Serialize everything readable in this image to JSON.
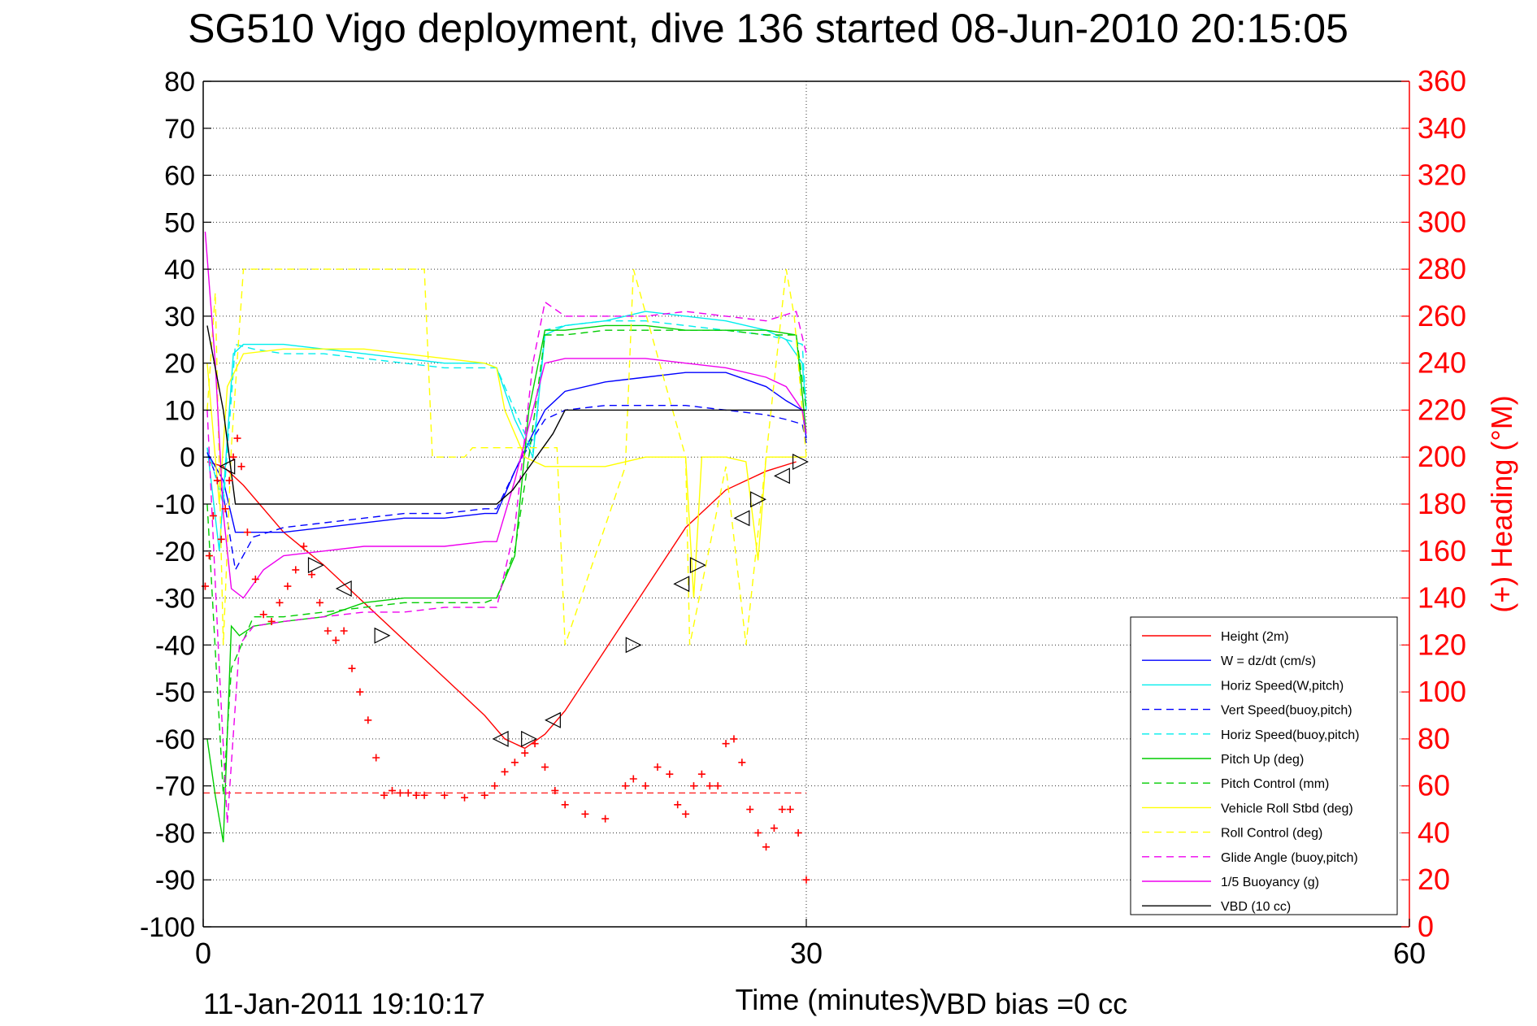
{
  "title": "SG510 Vigo deployment, dive 136 started 08-Jun-2010 20:15:05",
  "footer": {
    "timestamp": "11-Jan-2011 19:10:17",
    "vbd_bias": "VBD bias =0 cc"
  },
  "chart_data": {
    "type": "line",
    "title": "SG510 Vigo deployment, dive 136 started 08-Jun-2010 20:15:05",
    "xlabel": "Time (minutes)",
    "ylabel": "",
    "ylabel_right": "(+) Heading (°M)",
    "xlim": [
      0,
      60
    ],
    "ylim": [
      -100,
      80
    ],
    "ylim_right": [
      0,
      360
    ],
    "x_ticks": [
      "0",
      "30",
      "60"
    ],
    "y_ticks": [
      "80",
      "70",
      "60",
      "50",
      "40",
      "30",
      "20",
      "10",
      "0",
      "-10",
      "-20",
      "-30",
      "-40",
      "-50",
      "-60",
      "-70",
      "-80",
      "-90",
      "-100"
    ],
    "y_ticks_right": [
      "360",
      "340",
      "320",
      "300",
      "280",
      "260",
      "240",
      "220",
      "200",
      "180",
      "160",
      "140",
      "120",
      "100",
      "80",
      "60",
      "40",
      "20",
      "0"
    ],
    "grid": true,
    "legend_position": "bottom-right",
    "colors": {
      "red": "#ff0000",
      "blue": "#0000ff",
      "cyan": "#00eeee",
      "green": "#00cc00",
      "yellow": "#ffff00",
      "magenta": "#ee00ee",
      "black": "#000000"
    },
    "series": [
      {
        "name": "Height (2m)",
        "color": "#ff0000",
        "dash": false,
        "x": [
          0.2,
          1.0,
          2.0,
          4.0,
          6.0,
          8.0,
          10.0,
          12.0,
          14.0,
          15.0,
          16.0,
          17.0,
          18.0,
          20.0,
          22.0,
          24.0,
          26.0,
          28.0,
          29.5
        ],
        "y": [
          -1,
          -2,
          -6,
          -16,
          -23,
          -31,
          -39,
          -47,
          -55,
          -60,
          -62,
          -59,
          -54,
          -41,
          -28,
          -15,
          -7,
          -3,
          -1
        ]
      },
      {
        "name": "W = dz/dt (cm/s)",
        "color": "#0000ff",
        "dash": false,
        "x": [
          0.2,
          1.0,
          1.6,
          2.5,
          4.0,
          6.0,
          8.0,
          10.0,
          12.0,
          14.0,
          14.6,
          15.5,
          16.4,
          17.0,
          18.0,
          20.0,
          22.0,
          24.0,
          26.0,
          28.0,
          29.0,
          29.8,
          30.0
        ],
        "y": [
          1,
          -5,
          -16,
          -16,
          -16,
          -15,
          -14,
          -13,
          -13,
          -12,
          -12,
          -3,
          5,
          10,
          14,
          16,
          17,
          18,
          18,
          15,
          12,
          10,
          4
        ]
      },
      {
        "name": "Horiz Speed(W,pitch)",
        "color": "#00eeee",
        "dash": false,
        "x": [
          0.2,
          0.8,
          1.5,
          2.0,
          4.0,
          6.0,
          8.0,
          10.0,
          12.0,
          14.0,
          14.6,
          15.5,
          16.4,
          17.0,
          18.0,
          20.0,
          22.0,
          24.0,
          26.0,
          28.0,
          29.0,
          29.8,
          30.0
        ],
        "y": [
          2,
          -20,
          22,
          24,
          24,
          23,
          22,
          21,
          20,
          20,
          19,
          8,
          0,
          26,
          28,
          29,
          31,
          30,
          29,
          27,
          25,
          20,
          10
        ]
      },
      {
        "name": "Vert Speed(buoy,pitch)",
        "color": "#0000ff",
        "dash": true,
        "x": [
          0.2,
          1.0,
          1.6,
          2.5,
          4.0,
          6.0,
          8.0,
          10.0,
          12.0,
          14.0,
          14.6,
          15.5,
          16.4,
          17.0,
          18.0,
          20.0,
          22.0,
          24.0,
          26.0,
          28.0,
          29.0,
          29.8,
          30.0
        ],
        "y": [
          1,
          -8,
          -24,
          -17,
          -15,
          -14,
          -13,
          -12,
          -12,
          -11,
          -11,
          -3,
          4,
          8,
          10,
          11,
          11,
          11,
          10,
          9,
          8,
          7,
          3
        ]
      },
      {
        "name": "Horiz Speed(buoy,pitch)",
        "color": "#00eeee",
        "dash": true,
        "x": [
          0.2,
          1.0,
          1.6,
          2.5,
          4.0,
          6.0,
          8.0,
          10.0,
          12.0,
          14.0,
          14.6,
          15.5,
          16.4,
          17.0,
          18.0,
          20.0,
          22.0,
          24.0,
          26.0,
          28.0,
          29.0,
          29.8,
          30.0
        ],
        "y": [
          2,
          -10,
          24,
          23,
          22,
          22,
          21,
          20,
          19,
          19,
          19,
          10,
          1,
          27,
          28,
          29,
          29,
          28,
          27,
          26,
          25,
          24,
          10
        ]
      },
      {
        "name": "Pitch Up (deg)",
        "color": "#00cc00",
        "dash": false,
        "x": [
          0.2,
          0.6,
          1.0,
          1.4,
          1.8,
          2.5,
          4.0,
          6.0,
          8.0,
          10.0,
          12.0,
          14.0,
          14.6,
          15.5,
          16.2,
          17.0,
          18.0,
          20.0,
          22.0,
          24.0,
          26.0,
          28.0,
          29.5,
          30.0
        ],
        "y": [
          -60,
          -72,
          -82,
          -36,
          -38,
          -36,
          -35,
          -34,
          -31,
          -30,
          -30,
          -30,
          -30,
          -21,
          10,
          27,
          27,
          28,
          28,
          27,
          27,
          27,
          26,
          5
        ]
      },
      {
        "name": "Pitch Control (mm)",
        "color": "#00cc00",
        "dash": true,
        "x": [
          0.2,
          1.0,
          1.4,
          2.5,
          4.0,
          6.0,
          8.0,
          10.0,
          12.0,
          14.0,
          14.6,
          15.5,
          16.2,
          17.0,
          18.0,
          20.0,
          22.0,
          24.0,
          26.0,
          28.0,
          29.5,
          30.0
        ],
        "y": [
          -10,
          -72,
          -45,
          -34,
          -34,
          -33,
          -32,
          -31,
          -31,
          -31,
          -30,
          -20,
          0,
          26,
          26,
          27,
          27,
          27,
          27,
          26,
          26,
          10
        ]
      },
      {
        "name": "Vehicle Roll Stbd (deg)",
        "color": "#ffff00",
        "dash": false,
        "x": [
          0.2,
          0.8,
          1.2,
          2.0,
          4.0,
          6.0,
          8.0,
          10.0,
          12.0,
          14.0,
          14.6,
          15.0,
          16.0,
          17.0,
          18.0,
          20.0,
          22.0,
          24.0,
          24.4,
          24.8,
          26.0,
          27.0,
          27.6,
          28.0,
          29.0,
          30.0
        ],
        "y": [
          20,
          -10,
          15,
          22,
          23,
          23,
          23,
          22,
          21,
          20,
          19,
          10,
          0,
          -2,
          -2,
          -2,
          0,
          0,
          -30,
          0,
          0,
          -1,
          -22,
          0,
          0,
          0
        ]
      },
      {
        "name": "Roll Control (deg)",
        "color": "#ffff00",
        "dash": true,
        "x": [
          0.2,
          0.6,
          1.0,
          1.4,
          2.0,
          2.6,
          5.0,
          11.0,
          11.4,
          13.0,
          13.4,
          17.6,
          18.0,
          21.0,
          21.4,
          24.0,
          24.2,
          26.0,
          27.0,
          29.0,
          29.4,
          30.0
        ],
        "y": [
          10,
          35,
          -40,
          2,
          40,
          40,
          40,
          40,
          0,
          0,
          2,
          2,
          -40,
          -2,
          40,
          0,
          -40,
          -2,
          -40,
          40,
          30,
          0
        ]
      },
      {
        "name": "Glide Angle (buoy,pitch)",
        "color": "#ee00ee",
        "dash": true,
        "x": [
          0.2,
          0.8,
          1.2,
          1.8,
          2.5,
          4.0,
          6.0,
          8.0,
          10.0,
          12.0,
          14.0,
          14.6,
          15.5,
          16.4,
          17.0,
          18.0,
          20.0,
          22.0,
          24.0,
          26.0,
          28.0,
          29.5,
          30.0
        ],
        "y": [
          10,
          -45,
          -78,
          -40,
          -36,
          -35,
          -34,
          -33,
          -33,
          -32,
          -32,
          -32,
          -15,
          20,
          33,
          30,
          30,
          30,
          31,
          30,
          29,
          31,
          22
        ]
      },
      {
        "name": "1/5 Buoyancy (g)",
        "color": "#ee00ee",
        "dash": false,
        "x": [
          0.1,
          0.6,
          1.0,
          1.4,
          2.0,
          3.0,
          4.0,
          6.0,
          8.0,
          10.0,
          12.0,
          14.0,
          14.6,
          15.5,
          16.4,
          17.0,
          18.0,
          20.0,
          22.0,
          24.0,
          26.0,
          28.0,
          29.0,
          29.8,
          30.0
        ],
        "y": [
          48,
          20,
          -12,
          -28,
          -30,
          -24,
          -21,
          -20,
          -19,
          -19,
          -19,
          -18,
          -18,
          -5,
          10,
          20,
          21,
          21,
          21,
          20,
          19,
          17,
          15,
          10,
          5
        ]
      },
      {
        "name": "VBD (10 cc)",
        "color": "#000000",
        "dash": false,
        "x": [
          0.2,
          1.0,
          1.6,
          2.0,
          4.0,
          8.0,
          12.0,
          14.6,
          15.4,
          16.4,
          17.4,
          18.0,
          22.0,
          26.0,
          29.8,
          30.0
        ],
        "y": [
          28,
          10,
          -10,
          -10,
          -10,
          -10,
          -10,
          -10,
          -7,
          -1,
          5,
          10,
          10,
          10,
          10,
          10
        ]
      }
    ],
    "heading_markers": {
      "name": "(+) Heading",
      "color": "#ff0000",
      "marker": "+",
      "axis": "right",
      "x": [
        0.1,
        0.3,
        0.5,
        0.7,
        0.9,
        1.1,
        1.3,
        1.5,
        1.7,
        1.9,
        2.2,
        2.6,
        3.0,
        3.4,
        3.8,
        4.2,
        4.6,
        5.0,
        5.4,
        5.8,
        6.2,
        6.6,
        7.0,
        7.4,
        7.8,
        8.2,
        8.6,
        9.0,
        9.4,
        9.8,
        10.2,
        10.6,
        11.0,
        12.0,
        13.0,
        14.0,
        14.5,
        15.0,
        15.5,
        16.0,
        16.5,
        17.0,
        17.5,
        18.0,
        19.0,
        20.0,
        21.0,
        21.4,
        22.0,
        22.6,
        23.2,
        23.6,
        24.0,
        24.4,
        24.8,
        25.2,
        25.6,
        26.0,
        26.4,
        26.8,
        27.2,
        27.6,
        28.0,
        28.4,
        28.8,
        29.2,
        29.6,
        30.0
      ],
      "y": [
        145,
        158,
        175,
        190,
        165,
        178,
        190,
        200,
        208,
        196,
        168,
        148,
        133,
        130,
        138,
        145,
        152,
        162,
        150,
        138,
        126,
        122,
        126,
        110,
        100,
        88,
        72,
        56,
        58,
        57,
        57,
        56,
        56,
        56,
        55,
        56,
        60,
        66,
        70,
        74,
        78,
        68,
        58,
        52,
        48,
        46,
        60,
        63,
        60,
        68,
        65,
        52,
        48,
        60,
        65,
        60,
        60,
        78,
        80,
        70,
        50,
        40,
        34,
        42,
        50,
        50,
        40,
        20
      ]
    },
    "dashed_reference": {
      "name": "",
      "color": "#ff0000",
      "axis": "right",
      "x": [
        0,
        30
      ],
      "y": [
        57,
        57
      ]
    },
    "triangle_markers": {
      "name": "",
      "color": "#000000",
      "x": [
        1.2,
        5.6,
        7.0,
        8.9,
        14.8,
        16.2,
        17.4,
        21.4,
        23.8,
        24.6,
        26.8,
        27.6,
        28.8,
        29.7
      ],
      "y": [
        -2,
        -23,
        -28,
        -38,
        -60,
        -60,
        -56,
        -40,
        -27,
        -23,
        -13,
        -9,
        -4,
        -1
      ]
    }
  }
}
